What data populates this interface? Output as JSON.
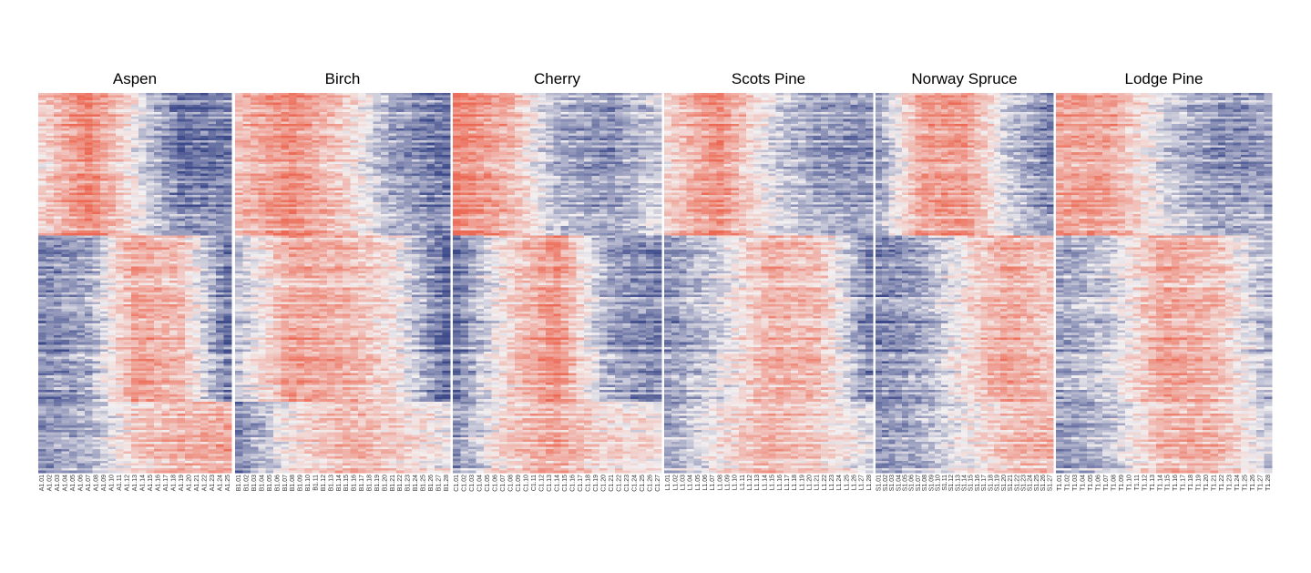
{
  "chart_data": {
    "type": "heatmap",
    "color_scale": {
      "low": "#3d4a8a",
      "mid": "#f3f0f1",
      "high": "#ec6a55"
    },
    "value_range": [
      -1,
      1
    ],
    "rows": 160,
    "grid": false,
    "legend": "none",
    "row_clusters": [
      {
        "name": "c1",
        "rows": 60
      },
      {
        "name": "c2",
        "rows": 70
      },
      {
        "name": "c3",
        "rows": 30
      }
    ],
    "panels": [
      {
        "title": "Aspen",
        "prefix": "A1",
        "columns": [
          "A1.01",
          "A1.02",
          "A1.03",
          "A1.04",
          "A1.05",
          "A1.06",
          "A1.07",
          "A1.08",
          "A1.09",
          "A1.10",
          "A1.11",
          "A1.12",
          "A1.13",
          "A1.14",
          "A1.15",
          "A1.16",
          "A1.17",
          "A1.18",
          "A1.19",
          "A1.20",
          "A1.21",
          "A1.22",
          "A1.23",
          "A1.24",
          "A1.25"
        ],
        "profile": [
          [
            0.2,
            0.9,
            0.0,
            -0.8,
            -0.7
          ],
          [
            -0.7,
            -0.5,
            0.6,
            0.4,
            -0.8
          ],
          [
            -0.6,
            -0.4,
            0.3,
            0.5,
            0.6
          ]
        ]
      },
      {
        "title": "Birch",
        "prefix": "B1",
        "columns": [
          "B1.01",
          "B1.02",
          "B1.03",
          "B1.04",
          "B1.05",
          "B1.06",
          "B1.07",
          "B1.08",
          "B1.09",
          "B1.10",
          "B1.11",
          "B1.12",
          "B1.13",
          "B1.14",
          "B1.15",
          "B1.16",
          "B1.17",
          "B1.18",
          "B1.19",
          "B1.20",
          "B1.21",
          "B1.22",
          "B1.23",
          "B1.24",
          "B1.25",
          "B1.26",
          "B1.27",
          "B1.28"
        ],
        "profile": [
          [
            0.4,
            0.8,
            0.3,
            -0.5,
            -0.8
          ],
          [
            -0.3,
            0.6,
            0.5,
            0.1,
            -0.9
          ],
          [
            -0.7,
            0.1,
            0.5,
            0.3,
            0.0
          ]
        ]
      },
      {
        "title": "Cherry",
        "prefix": "C1",
        "columns": [
          "C1.01",
          "C1.02",
          "C1.03",
          "C1.04",
          "C1.05",
          "C1.06",
          "C1.07",
          "C1.08",
          "C1.09",
          "C1.10",
          "C1.11",
          "C1.12",
          "C1.13",
          "C1.14",
          "C1.15",
          "C1.16",
          "C1.17",
          "C1.18",
          "C1.19",
          "C1.20",
          "C1.21",
          "C1.22",
          "C1.23",
          "C1.24",
          "C1.25",
          "C1.26",
          "C1.27"
        ],
        "profile": [
          [
            0.9,
            0.5,
            -0.4,
            -0.6,
            -0.2
          ],
          [
            -0.8,
            0.2,
            0.8,
            -0.5,
            -0.7
          ],
          [
            -0.6,
            0.3,
            0.6,
            0.2,
            0.1
          ]
        ]
      },
      {
        "title": "Scots Pine",
        "prefix": "L1",
        "columns": [
          "L1.01",
          "L1.02",
          "L1.03",
          "L1.04",
          "L1.05",
          "L1.06",
          "L1.07",
          "L1.08",
          "L1.09",
          "L1.10",
          "L1.11",
          "L1.12",
          "L1.13",
          "L1.14",
          "L1.15",
          "L1.16",
          "L1.17",
          "L1.18",
          "L1.19",
          "L1.20",
          "L1.21",
          "L1.22",
          "L1.23",
          "L1.24",
          "L1.25",
          "L1.26",
          "L1.27",
          "L1.28"
        ],
        "profile": [
          [
            0.2,
            0.8,
            -0.1,
            -0.5,
            -0.6
          ],
          [
            -0.6,
            -0.2,
            0.5,
            0.4,
            -0.7
          ],
          [
            -0.5,
            0.1,
            0.5,
            0.3,
            -0.1
          ]
        ]
      },
      {
        "title": "Norway Spruce",
        "prefix": "S1",
        "columns": [
          "S1.01",
          "S1.02",
          "S1.03",
          "S1.04",
          "S1.05",
          "S1.06",
          "S1.07",
          "S1.08",
          "S1.09",
          "S1.10",
          "S1.11",
          "S1.12",
          "S1.13",
          "S1.14",
          "S1.15",
          "S1.16",
          "S1.17",
          "S1.18",
          "S1.19",
          "S1.20",
          "S1.21",
          "S1.22",
          "S1.23",
          "S1.24",
          "S1.25",
          "S1.26",
          "S1.27"
        ],
        "profile": [
          [
            -0.5,
            0.6,
            0.7,
            -0.2,
            -0.7
          ],
          [
            -0.7,
            -0.5,
            0.1,
            0.6,
            0.3
          ],
          [
            -0.6,
            -0.4,
            0.0,
            0.4,
            0.5
          ]
        ]
      },
      {
        "title": "Lodge Pine",
        "prefix": "T1",
        "columns": [
          "T1.01",
          "T1.02",
          "T1.03",
          "T1.04",
          "T1.05",
          "T1.06",
          "T1.07",
          "T1.08",
          "T1.09",
          "T1.10",
          "T1.11",
          "T1.12",
          "T1.13",
          "T1.14",
          "T1.15",
          "T1.16",
          "T1.17",
          "T1.18",
          "T1.19",
          "T1.20",
          "T1.21",
          "T1.22",
          "T1.23",
          "T1.24",
          "T1.25",
          "T1.26",
          "T1.27",
          "T1.28"
        ],
        "profile": [
          [
            0.6,
            0.6,
            -0.2,
            -0.6,
            -0.5
          ],
          [
            -0.5,
            -0.2,
            0.6,
            0.4,
            -0.4
          ],
          [
            -0.6,
            -0.3,
            0.5,
            0.5,
            -0.2
          ]
        ]
      }
    ]
  }
}
